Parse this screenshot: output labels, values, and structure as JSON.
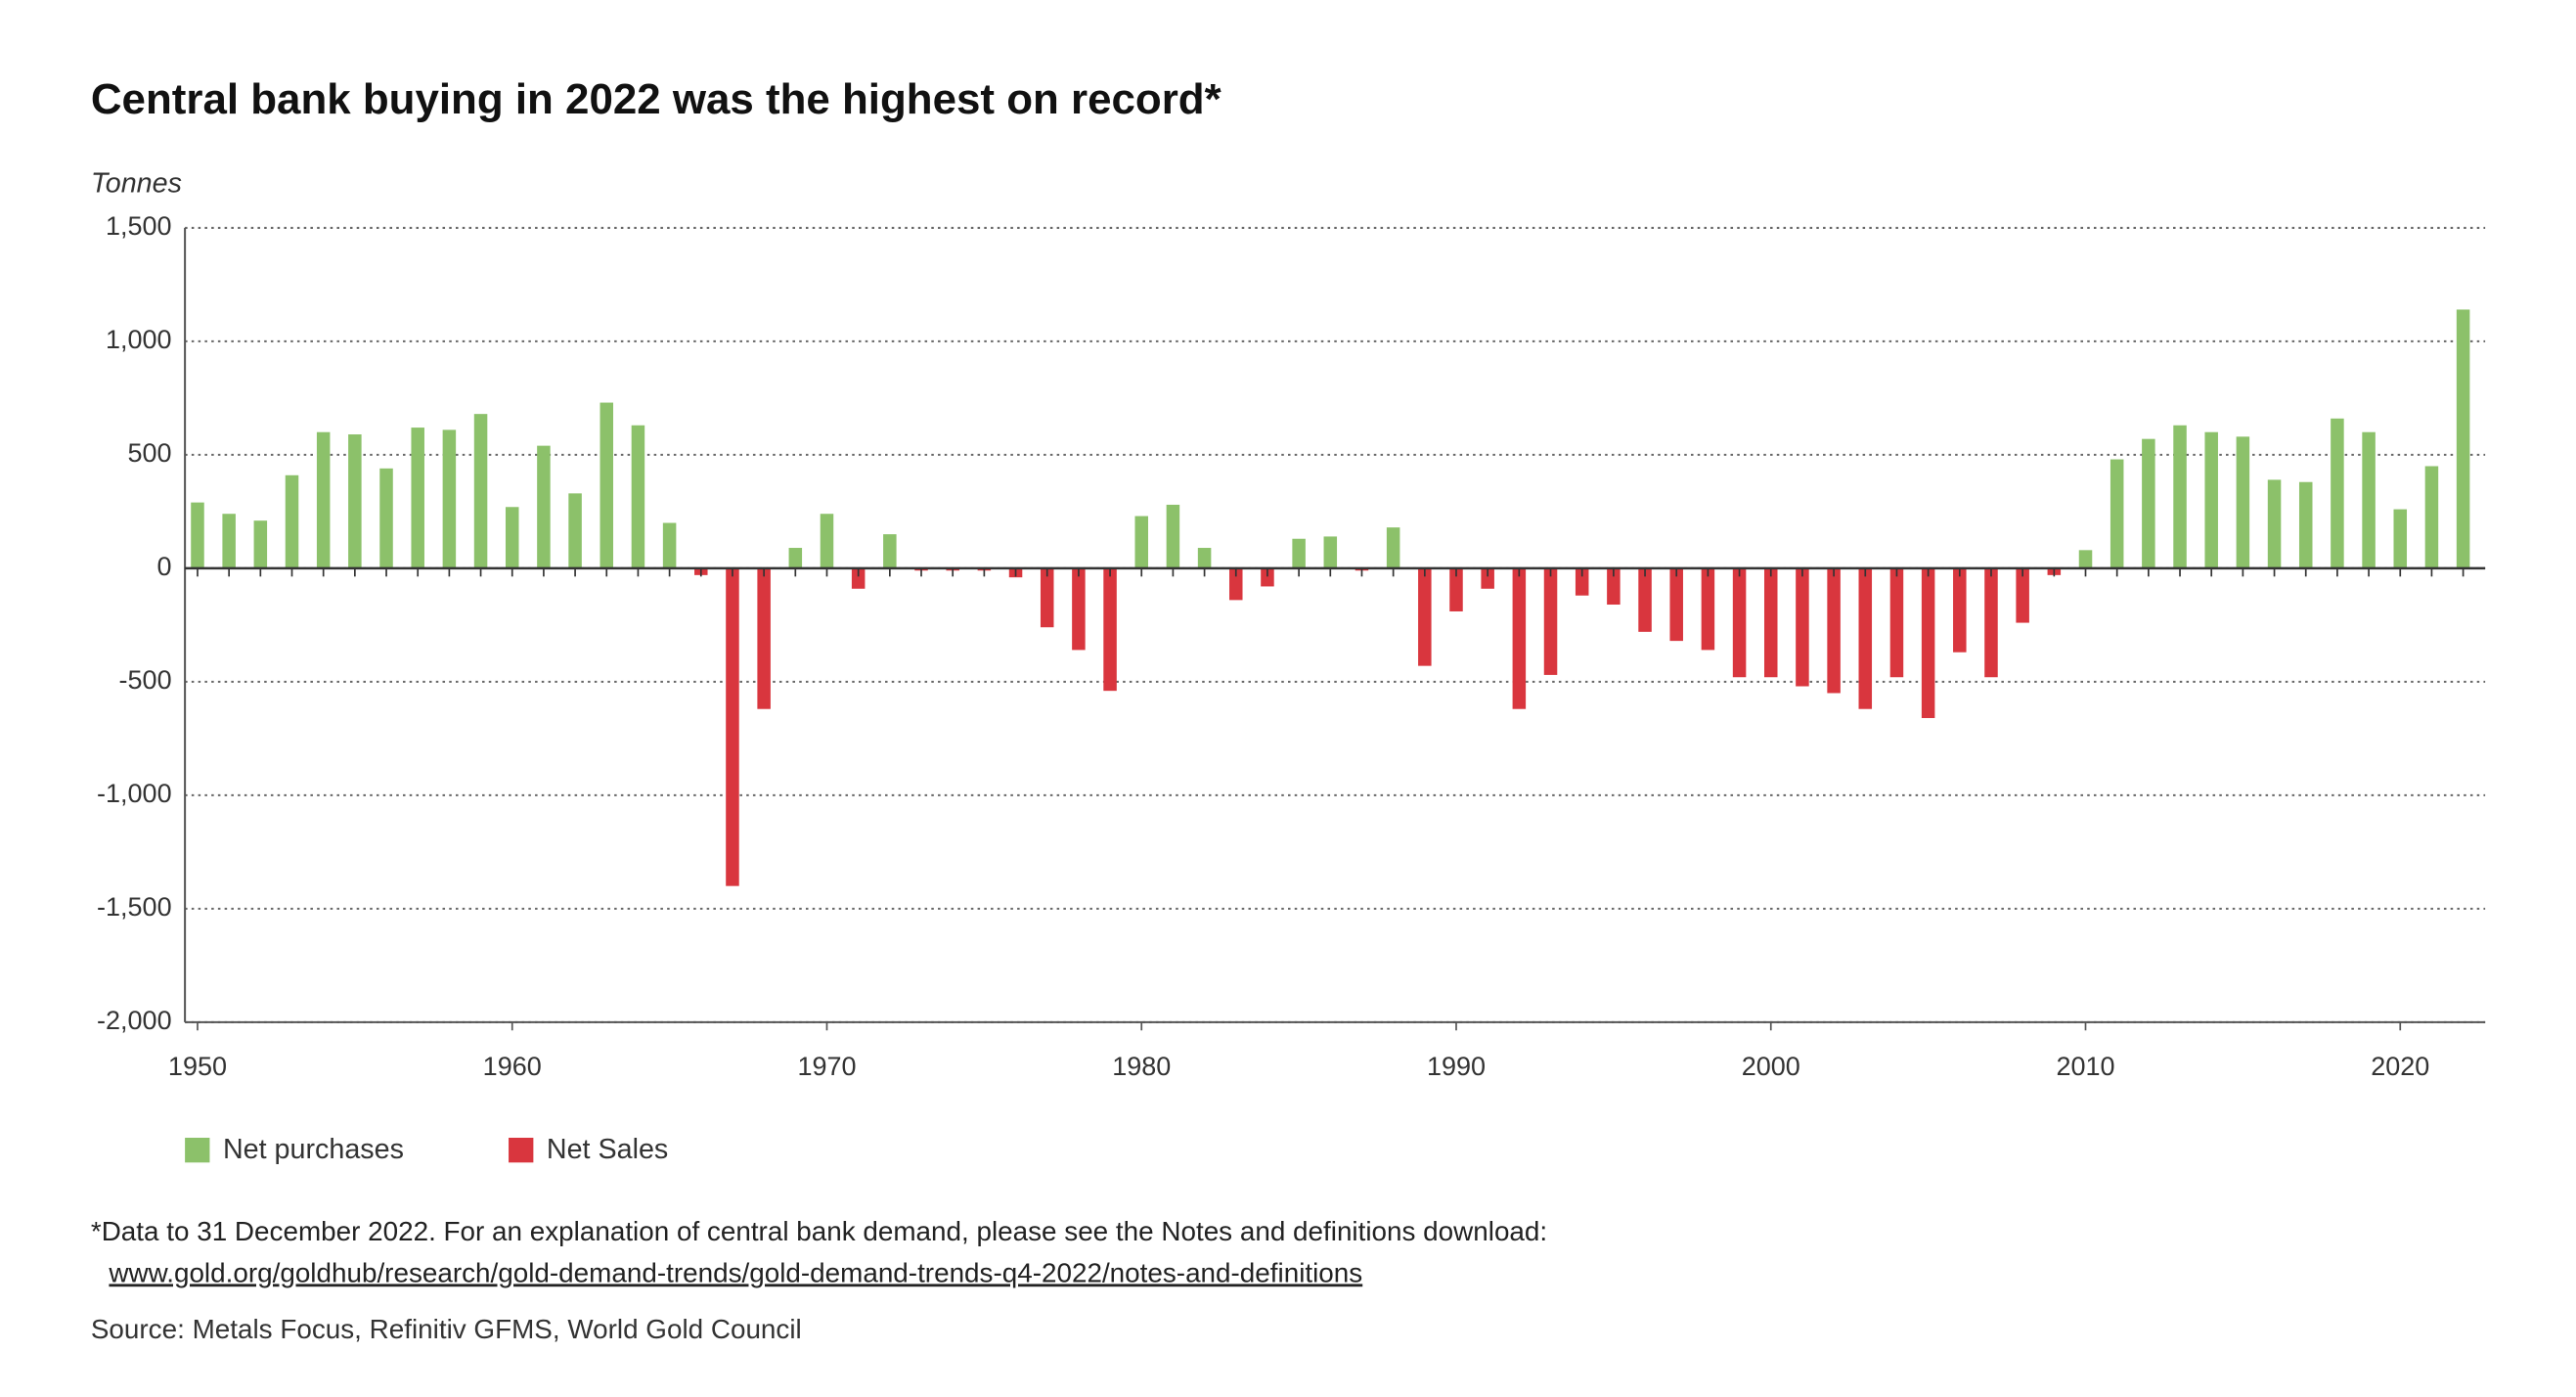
{
  "chart_data": {
    "type": "bar",
    "title": "Central bank buying in 2022 was the highest on record*",
    "ylabel": "Tonnes",
    "x": [
      1950,
      1951,
      1952,
      1953,
      1954,
      1955,
      1956,
      1957,
      1958,
      1959,
      1960,
      1961,
      1962,
      1963,
      1964,
      1965,
      1966,
      1967,
      1968,
      1969,
      1970,
      1971,
      1972,
      1973,
      1974,
      1975,
      1976,
      1977,
      1978,
      1979,
      1980,
      1981,
      1982,
      1983,
      1984,
      1985,
      1986,
      1987,
      1988,
      1989,
      1990,
      1991,
      1992,
      1993,
      1994,
      1995,
      1996,
      1997,
      1998,
      1999,
      2000,
      2001,
      2002,
      2003,
      2004,
      2005,
      2006,
      2007,
      2008,
      2009,
      2010,
      2011,
      2012,
      2013,
      2014,
      2015,
      2016,
      2017,
      2018,
      2019,
      2020,
      2021,
      2022
    ],
    "series": [
      {
        "name": "Net purchases",
        "color": "#8cc16a",
        "values": [
          290,
          240,
          210,
          410,
          600,
          590,
          440,
          620,
          610,
          680,
          270,
          540,
          330,
          730,
          630,
          200,
          null,
          null,
          null,
          90,
          240,
          null,
          150,
          null,
          null,
          null,
          null,
          null,
          null,
          null,
          230,
          280,
          90,
          null,
          null,
          130,
          140,
          null,
          180,
          null,
          null,
          null,
          null,
          null,
          null,
          null,
          null,
          null,
          null,
          null,
          null,
          null,
          null,
          null,
          null,
          null,
          null,
          null,
          null,
          null,
          80,
          480,
          570,
          630,
          600,
          580,
          390,
          380,
          660,
          600,
          260,
          450,
          1140
        ]
      },
      {
        "name": "Net Sales",
        "color": "#d9363e",
        "values": [
          null,
          null,
          null,
          null,
          null,
          null,
          null,
          null,
          null,
          null,
          null,
          null,
          null,
          null,
          null,
          null,
          -30,
          -1400,
          -620,
          null,
          null,
          -90,
          null,
          -10,
          -10,
          -10,
          -40,
          -260,
          -360,
          -540,
          null,
          null,
          null,
          -140,
          -80,
          null,
          null,
          -10,
          null,
          -430,
          -190,
          -90,
          -620,
          -470,
          -120,
          -160,
          -280,
          -320,
          -360,
          -480,
          -480,
          -520,
          -550,
          -620,
          -480,
          -660,
          -370,
          -480,
          -240,
          -30,
          null,
          null,
          null,
          null,
          null,
          null,
          null,
          null,
          null,
          null,
          null,
          null,
          null
        ]
      }
    ],
    "xlim": [
      1949.6,
      2022.7
    ],
    "xticks": [
      1950,
      1960,
      1970,
      1980,
      1990,
      2000,
      2010,
      2020
    ],
    "ylim": [
      -2000,
      1500
    ],
    "yticks": [
      {
        "value": -2000,
        "label": "-2,000"
      },
      {
        "value": -1500,
        "label": "-1,500"
      },
      {
        "value": -1000,
        "label": "-1,000"
      },
      -500,
      0,
      500,
      {
        "value": 1000,
        "label": "1,000"
      },
      {
        "value": 1500,
        "label": "1,500"
      }
    ],
    "grid": true,
    "legend": "bottom",
    "footnote": "*Data to 31 December 2022. For an explanation of central bank demand, please see the Notes and definitions download:",
    "link": "www.gold.org/goldhub/research/gold-demand-trends/gold-demand-trends-q4-2022/notes-and-definitions",
    "source": "Source: Metals Focus, Refinitiv GFMS, World Gold Council"
  }
}
